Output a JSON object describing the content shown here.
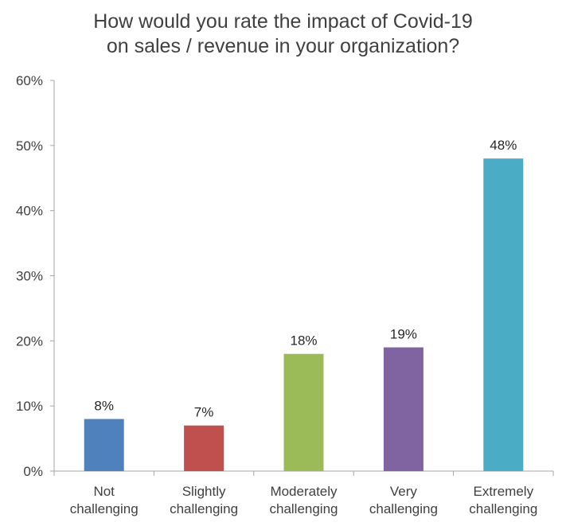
{
  "chart_data": {
    "type": "bar",
    "title_lines": [
      "How would you rate the impact of Covid-19",
      "on sales / revenue in your organization?"
    ],
    "categories": [
      [
        "Not",
        "challenging"
      ],
      [
        "Slightly",
        "challenging"
      ],
      [
        "Moderately",
        "challenging"
      ],
      [
        "Very",
        "challenging"
      ],
      [
        "Extremely",
        "challenging"
      ]
    ],
    "values": [
      8,
      7,
      18,
      19,
      48
    ],
    "data_labels": [
      "8%",
      "7%",
      "18%",
      "19%",
      "48%"
    ],
    "bar_colors": [
      "#4f81bd",
      "#c0504d",
      "#9bbb59",
      "#8064a2",
      "#4bacc6"
    ],
    "ylim": [
      0,
      60
    ],
    "yticks": [
      0,
      10,
      20,
      30,
      40,
      50,
      60
    ],
    "ytick_labels": [
      "0%",
      "10%",
      "20%",
      "30%",
      "40%",
      "50%",
      "60%"
    ],
    "grid": false,
    "legend": "none"
  }
}
